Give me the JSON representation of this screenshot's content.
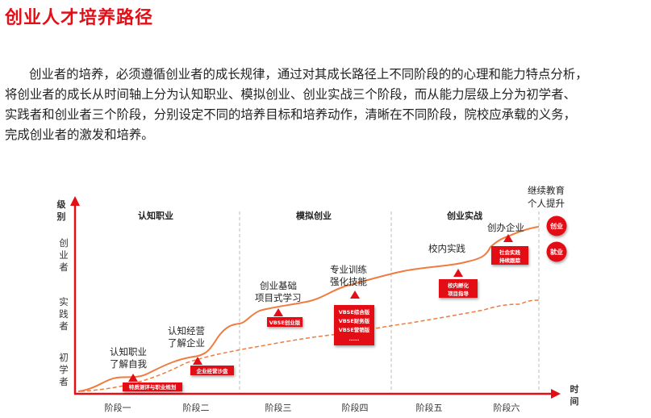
{
  "title": "创业人才培养路径",
  "paragraph": [
    "创业者的培养，必须遵循创业者的成长规律，通过对其成长路径上不同阶段的的心理和能力特点分析，",
    "将创业者的成长从时间轴上分为认知职业、模拟创业、创业实战三个阶段，而从能力层级上分为初学者、",
    "实践者和创业者三个阶段，分别设定不同的培养目标和培养动作，清晰在不同阶段，院校应承载的义务，",
    "完成创业者的激发和培养。"
  ],
  "diagram": {
    "y_axis_label": [
      "级",
      "别"
    ],
    "x_axis_label": [
      "时",
      "间"
    ],
    "levels": [
      [
        "创",
        "业",
        "者"
      ],
      [
        "实",
        "践",
        "者"
      ],
      [
        "初",
        "学",
        "者"
      ]
    ],
    "phases": [
      "认知职业",
      "模拟创业",
      "创业实战"
    ],
    "stages": [
      "阶段一",
      "阶段二",
      "阶段三",
      "阶段四",
      "阶段五",
      "阶段六"
    ],
    "milestones": [
      [
        "认知职业",
        "了解自我"
      ],
      [
        "认知经营",
        "了解企业"
      ],
      [
        "创业基础",
        "项目式学习"
      ],
      [
        "专业训练",
        "强化技能"
      ],
      [
        "校内实践"
      ],
      [
        "创办企业"
      ],
      [
        "继续教育",
        "个人提升"
      ]
    ],
    "badges": [
      [
        "特质测评与职业规划"
      ],
      [
        "企业经营沙盘"
      ],
      [
        "VBSE创业版"
      ],
      [
        "VBSE综合版",
        "VBSE财务版",
        "VBSE营销版",
        "……"
      ],
      [
        "校内孵化",
        "项目指导"
      ],
      [
        "社会实践",
        "持续跟踪"
      ]
    ],
    "outcomes": [
      "创业",
      "就业"
    ],
    "colors": {
      "accent": "#e30f17",
      "curve": "#f07b3f"
    }
  }
}
